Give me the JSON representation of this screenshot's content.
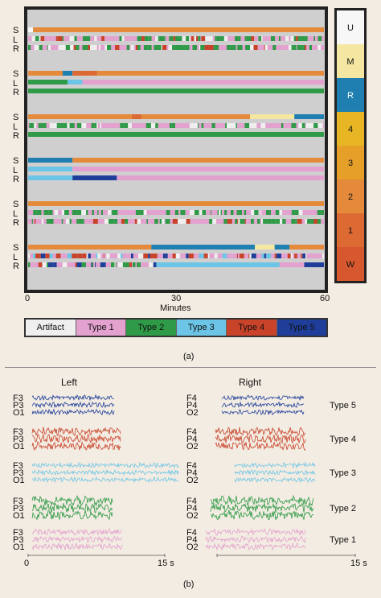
{
  "colors": {
    "artifact": "#efefef",
    "type1": "#e3a1cf",
    "type2": "#2f9a47",
    "type3": "#6cc5e6",
    "type4": "#c8432a",
    "type5": "#1e3e9a",
    "stage_U": "#f7f7f7",
    "stage_M": "#f4e7a2",
    "stage_R": "#1f7fb0",
    "stage_4": "#e8b525",
    "stage_3": "#e6a02a",
    "stage_2": "#e48a3a",
    "stage_1": "#dc6a32",
    "stage_W": "#d7582e"
  },
  "panel_a": {
    "caption": "(a)",
    "row_labels": [
      "S",
      "L",
      "R"
    ],
    "x_ticks": [
      "0",
      "30",
      "60"
    ],
    "xlabel": "Minutes",
    "stage_scale": [
      "U",
      "M",
      "R",
      "4",
      "3",
      "2",
      "1",
      "W"
    ],
    "legend": [
      "Artifact",
      "Type 1",
      "Type 2",
      "Type 3",
      "Type 4",
      "Type 5"
    ]
  },
  "panel_b": {
    "caption": "(b)",
    "left_title": "Left",
    "right_title": "Right",
    "left_channels": [
      "F3",
      "P3",
      "O1"
    ],
    "right_channels": [
      "F4",
      "P4",
      "O2"
    ],
    "types": [
      "Type 5",
      "Type 4",
      "Type 3",
      "Type 2",
      "Type 1"
    ],
    "x_ticks_left": [
      "0",
      "15 s"
    ],
    "x_ticks_right": [
      "15 s"
    ]
  },
  "chart_data": [
    {
      "type": "heatmap",
      "title": "",
      "xlabel": "Minutes",
      "xlim": [
        0,
        60
      ],
      "x_ticks": [
        0,
        30,
        60
      ],
      "groups": 6,
      "rows_per_group": [
        "S",
        "L",
        "R"
      ],
      "categories_stage": [
        "U",
        "M",
        "R",
        "4",
        "3",
        "2",
        "1",
        "W"
      ],
      "categories_type": [
        "Artifact",
        "Type 1",
        "Type 2",
        "Type 3",
        "Type 4",
        "Type 5"
      ],
      "segments": [
        {
          "group": 1,
          "row": "S",
          "data": [
            [
              0,
              1,
              "U"
            ],
            [
              1,
              60,
              "2"
            ]
          ]
        },
        {
          "group": 1,
          "row": "L",
          "data": [
            [
              0,
              60,
              "mixed Type 1 / Type 2 / Type 4"
            ]
          ]
        },
        {
          "group": 1,
          "row": "R",
          "data": [
            [
              0,
              60,
              "mixed Type 1 / Type 2 / Type 4"
            ]
          ]
        },
        {
          "group": 2,
          "row": "S",
          "data": [
            [
              0,
              7,
              "2"
            ],
            [
              7,
              9,
              "R"
            ],
            [
              9,
              14,
              "1"
            ],
            [
              14,
              60,
              "2"
            ]
          ]
        },
        {
          "group": 2,
          "row": "L",
          "data": [
            [
              0,
              8,
              "Type 2"
            ],
            [
              8,
              11,
              "Type 3"
            ],
            [
              11,
              16,
              "Type 1"
            ],
            [
              16,
              60,
              "Type 1"
            ]
          ]
        },
        {
          "group": 2,
          "row": "R",
          "data": [
            [
              0,
              60,
              "Type 2"
            ]
          ]
        },
        {
          "group": 3,
          "row": "S",
          "data": [
            [
              0,
              21,
              "2"
            ],
            [
              21,
              23,
              "1"
            ],
            [
              23,
              45,
              "2"
            ],
            [
              45,
              54,
              "M"
            ],
            [
              54,
              60,
              "R"
            ]
          ]
        },
        {
          "group": 3,
          "row": "L",
          "data": [
            [
              0,
              60,
              "mixed Type 1 / Type 2"
            ]
          ]
        },
        {
          "group": 3,
          "row": "R",
          "data": [
            [
              0,
              60,
              "Type 2"
            ]
          ]
        },
        {
          "group": 4,
          "row": "S",
          "data": [
            [
              0,
              9,
              "R"
            ],
            [
              9,
              60,
              "2"
            ]
          ]
        },
        {
          "group": 4,
          "row": "L",
          "data": [
            [
              0,
              9,
              "Type 3"
            ],
            [
              9,
              60,
              "Type 1"
            ]
          ]
        },
        {
          "group": 4,
          "row": "R",
          "data": [
            [
              0,
              9,
              "Type 3"
            ],
            [
              9,
              18,
              "Type 5"
            ],
            [
              18,
              60,
              "Type 1"
            ]
          ]
        },
        {
          "group": 5,
          "row": "S",
          "data": [
            [
              0,
              60,
              "2"
            ]
          ]
        },
        {
          "group": 5,
          "row": "L",
          "data": [
            [
              0,
              60,
              "mixed Type 1 / Type 2"
            ]
          ]
        },
        {
          "group": 5,
          "row": "R",
          "data": [
            [
              0,
              60,
              "mixed Type 1 / Type 2 / Type 4"
            ]
          ]
        },
        {
          "group": 6,
          "row": "S",
          "data": [
            [
              0,
              25,
              "2"
            ],
            [
              25,
              46,
              "R"
            ],
            [
              46,
              50,
              "M"
            ],
            [
              50,
              53,
              "R"
            ],
            [
              53,
              60,
              "2"
            ]
          ]
        },
        {
          "group": 6,
          "row": "L",
          "data": [
            [
              0,
              60,
              "mixed Type 1 / Type 4 / Type 5"
            ]
          ]
        },
        {
          "group": 6,
          "row": "R",
          "data": [
            [
              0,
              26,
              "mixed"
            ],
            [
              26,
              51,
              "Type 3"
            ],
            [
              51,
              56,
              "Type 1"
            ],
            [
              56,
              60,
              "Type 5"
            ]
          ]
        }
      ]
    },
    {
      "type": "line",
      "title": "",
      "xlabel": "",
      "xlim": [
        0,
        15
      ],
      "x_ticks": [
        "0",
        "15 s"
      ],
      "series": [
        {
          "name": "Type 5",
          "color": "#1e3e9a"
        },
        {
          "name": "Type 4",
          "color": "#c8432a"
        },
        {
          "name": "Type 3",
          "color": "#6cc5e6"
        },
        {
          "name": "Type 2",
          "color": "#2f9a47"
        },
        {
          "name": "Type 1",
          "color": "#e3a1cf"
        }
      ]
    }
  ]
}
